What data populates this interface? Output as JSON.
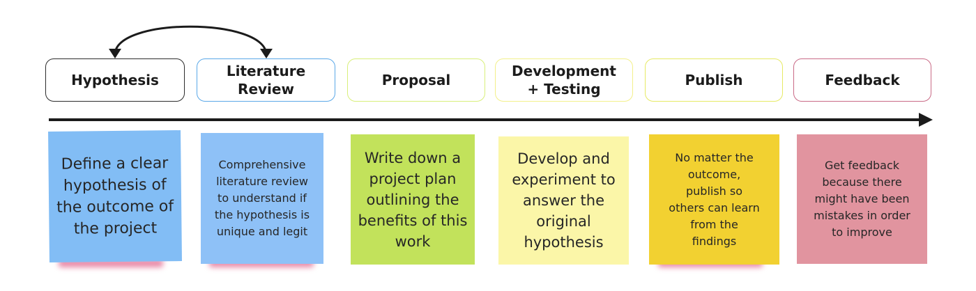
{
  "stages": [
    {
      "label": "Hypothesis",
      "border_color": "#2b2b2b"
    },
    {
      "label": "Literature Review",
      "border_color": "#5aa8e8"
    },
    {
      "label": "Proposal",
      "border_color": "#d8ef7a"
    },
    {
      "label": "Development + Testing",
      "border_color": "#f3f08a"
    },
    {
      "label": "Publish",
      "border_color": "#e6ea64"
    },
    {
      "label": "Feedback",
      "border_color": "#c96a86"
    }
  ],
  "notes": [
    {
      "text": "Define a clear hypothesis of the outcome of the project",
      "color": "#82bdf5"
    },
    {
      "text": "Comprehensive literature review to understand if the hypothesis is unique and legit",
      "color": "#8ec1f7"
    },
    {
      "text": "Write down a project plan outlining the benefits of this work",
      "color": "#c2e25b"
    },
    {
      "text": "Develop and experiment to answer the original hypothesis",
      "color": "#fbf6a8"
    },
    {
      "text": "No matter the outcome, publish so others can learn from the findings",
      "color": "#f2d131"
    },
    {
      "text": "Get feedback because there might have been mistakes in order to improve",
      "color": "#e1949f"
    }
  ],
  "colors": {
    "timeline": "#1b1b1b",
    "loop_arrow": "#1b1b1b",
    "note_shadow": "#e98aa8"
  }
}
